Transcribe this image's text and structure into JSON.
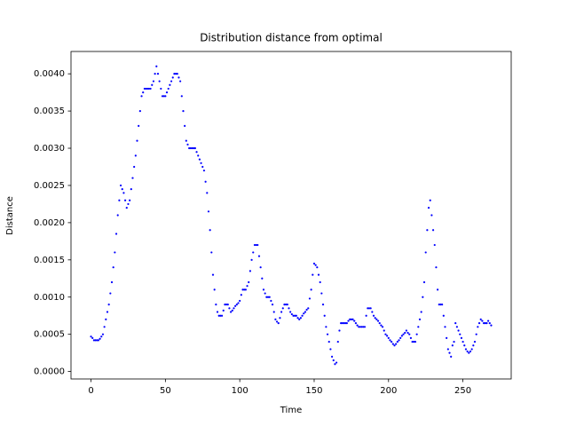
{
  "chart_data": {
    "type": "scatter",
    "title": "Distribution distance from optimal",
    "x_label": "Time",
    "y_label": "Distance",
    "series": [
      {
        "color": "#0000ff",
        "x": [
          0,
          1,
          2,
          3,
          4,
          5,
          6,
          7,
          8,
          9,
          10,
          11,
          12,
          13,
          14,
          15,
          16,
          17,
          18,
          19,
          20,
          21,
          22,
          23,
          24,
          25,
          26,
          27,
          28,
          29,
          30,
          31,
          32,
          33,
          34,
          35,
          36,
          37,
          38,
          39,
          40,
          41,
          42,
          43,
          44,
          45,
          46,
          47,
          48,
          49,
          50,
          51,
          52,
          53,
          54,
          55,
          56,
          57,
          58,
          59,
          60,
          61,
          62,
          63,
          64,
          65,
          66,
          67,
          68,
          69,
          70,
          71,
          72,
          73,
          74,
          75,
          76,
          77,
          78,
          79,
          80,
          81,
          82,
          83,
          84,
          85,
          86,
          87,
          88,
          89,
          90,
          91,
          92,
          93,
          94,
          95,
          96,
          97,
          98,
          99,
          100,
          101,
          102,
          103,
          104,
          105,
          106,
          107,
          108,
          109,
          110,
          111,
          112,
          113,
          114,
          115,
          116,
          117,
          118,
          119,
          120,
          121,
          122,
          123,
          124,
          125,
          126,
          127,
          128,
          129,
          130,
          131,
          132,
          133,
          134,
          135,
          136,
          137,
          138,
          139,
          140,
          141,
          142,
          143,
          144,
          145,
          146,
          147,
          148,
          149,
          150,
          151,
          152,
          153,
          154,
          155,
          156,
          157,
          158,
          159,
          160,
          161,
          162,
          163,
          164,
          165,
          166,
          167,
          168,
          169,
          170,
          171,
          172,
          173,
          174,
          175,
          176,
          177,
          178,
          179,
          180,
          181,
          182,
          183,
          184,
          185,
          186,
          187,
          188,
          189,
          190,
          191,
          192,
          193,
          194,
          195,
          196,
          197,
          198,
          199,
          200,
          201,
          202,
          203,
          204,
          205,
          206,
          207,
          208,
          209,
          210,
          211,
          212,
          213,
          214,
          215,
          216,
          217,
          218,
          219,
          220,
          221,
          222,
          223,
          224,
          225,
          226,
          227,
          228,
          229,
          230,
          231,
          232,
          233,
          234,
          235,
          236,
          237,
          238,
          239,
          240,
          241,
          242,
          243,
          244,
          245,
          246,
          247,
          248,
          249,
          250,
          251,
          252,
          253,
          254,
          255,
          256,
          257,
          258,
          259,
          260,
          261,
          262,
          263,
          264,
          265,
          266,
          267,
          268,
          269
        ],
        "values": [
          0.00047,
          0.00045,
          0.00042,
          0.00042,
          0.00042,
          0.00042,
          0.00044,
          0.00047,
          0.0005,
          0.0006,
          0.0007,
          0.0008,
          0.0009,
          0.00105,
          0.0012,
          0.0014,
          0.0016,
          0.00185,
          0.0021,
          0.0023,
          0.0025,
          0.00245,
          0.0024,
          0.0023,
          0.0022,
          0.00225,
          0.0023,
          0.00245,
          0.0026,
          0.00275,
          0.0029,
          0.0031,
          0.0033,
          0.0035,
          0.0037,
          0.00375,
          0.0038,
          0.0038,
          0.0038,
          0.0038,
          0.0038,
          0.00385,
          0.0039,
          0.004,
          0.0041,
          0.004,
          0.0039,
          0.0038,
          0.0037,
          0.0037,
          0.0037,
          0.00375,
          0.0038,
          0.00385,
          0.0039,
          0.00395,
          0.004,
          0.004,
          0.004,
          0.00395,
          0.0039,
          0.0037,
          0.0035,
          0.0033,
          0.0031,
          0.00305,
          0.003,
          0.003,
          0.003,
          0.003,
          0.003,
          0.00295,
          0.0029,
          0.00285,
          0.0028,
          0.00275,
          0.0027,
          0.00255,
          0.0024,
          0.00215,
          0.0019,
          0.0016,
          0.0013,
          0.0011,
          0.0009,
          0.0008,
          0.00075,
          0.00075,
          0.00075,
          0.00082,
          0.0009,
          0.0009,
          0.0009,
          0.00085,
          0.0008,
          0.00082,
          0.00085,
          0.00088,
          0.0009,
          0.00092,
          0.00095,
          0.00103,
          0.0011,
          0.0011,
          0.0011,
          0.00115,
          0.0012,
          0.00135,
          0.0015,
          0.0016,
          0.0017,
          0.0017,
          0.0017,
          0.00155,
          0.0014,
          0.00125,
          0.0011,
          0.00105,
          0.001,
          0.001,
          0.001,
          0.00095,
          0.0009,
          0.0008,
          0.0007,
          0.00067,
          0.00065,
          0.00072,
          0.0008,
          0.00085,
          0.0009,
          0.0009,
          0.0009,
          0.00085,
          0.0008,
          0.00077,
          0.00075,
          0.00075,
          0.00075,
          0.00072,
          0.0007,
          0.00072,
          0.00075,
          0.00078,
          0.0008,
          0.00083,
          0.00085,
          0.00098,
          0.0011,
          0.0013,
          0.00145,
          0.00143,
          0.0014,
          0.0013,
          0.0012,
          0.00105,
          0.0009,
          0.00075,
          0.0006,
          0.0005,
          0.0004,
          0.0003,
          0.0002,
          0.00015,
          0.0001,
          0.00012,
          0.0004,
          0.00055,
          0.00065,
          0.00065,
          0.00065,
          0.00065,
          0.00065,
          0.00068,
          0.0007,
          0.0007,
          0.0007,
          0.00068,
          0.00065,
          0.00062,
          0.0006,
          0.0006,
          0.0006,
          0.0006,
          0.0006,
          0.00075,
          0.00085,
          0.00085,
          0.00085,
          0.0008,
          0.00075,
          0.00072,
          0.0007,
          0.00068,
          0.00065,
          0.00062,
          0.0006,
          0.00055,
          0.0005,
          0.00048,
          0.00045,
          0.00042,
          0.0004,
          0.00037,
          0.00035,
          0.00037,
          0.0004,
          0.00042,
          0.00045,
          0.00048,
          0.0005,
          0.00052,
          0.00055,
          0.00052,
          0.0005,
          0.00045,
          0.0004,
          0.0004,
          0.0004,
          0.0005,
          0.0006,
          0.0007,
          0.0008,
          0.001,
          0.0012,
          0.0016,
          0.0019,
          0.0022,
          0.0023,
          0.0021,
          0.0019,
          0.0017,
          0.0014,
          0.0011,
          0.0009,
          0.0009,
          0.0009,
          0.00075,
          0.0006,
          0.00045,
          0.0003,
          0.00025,
          0.0002,
          0.00035,
          0.0004,
          0.00065,
          0.0006,
          0.00055,
          0.0005,
          0.00045,
          0.0004,
          0.00035,
          0.0003,
          0.00027,
          0.00025,
          0.00027,
          0.0003,
          0.00035,
          0.0004,
          0.0005,
          0.0006,
          0.00065,
          0.0007,
          0.00068,
          0.00065,
          0.00065,
          0.00065,
          0.00068,
          0.00065,
          0.00062
        ]
      }
    ],
    "xlim": [
      -13.45,
      282.45
    ],
    "ylim": [
      -0.0001,
      0.0043
    ],
    "xticks": [
      0,
      50,
      100,
      150,
      200,
      250
    ],
    "yticks": [
      {
        "value": 0,
        "label": "0.0000"
      },
      {
        "value": 0.0005,
        "label": "0.0005"
      },
      {
        "value": 0.001,
        "label": "0.0010"
      },
      {
        "value": 0.0015,
        "label": "0.0015"
      },
      {
        "value": 0.002,
        "label": "0.0020"
      },
      {
        "value": 0.0025,
        "label": "0.0025"
      },
      {
        "value": 0.003,
        "label": "0.0030"
      },
      {
        "value": 0.0035,
        "label": "0.0035"
      },
      {
        "value": 0.004,
        "label": "0.0040"
      }
    ],
    "grid": false
  }
}
